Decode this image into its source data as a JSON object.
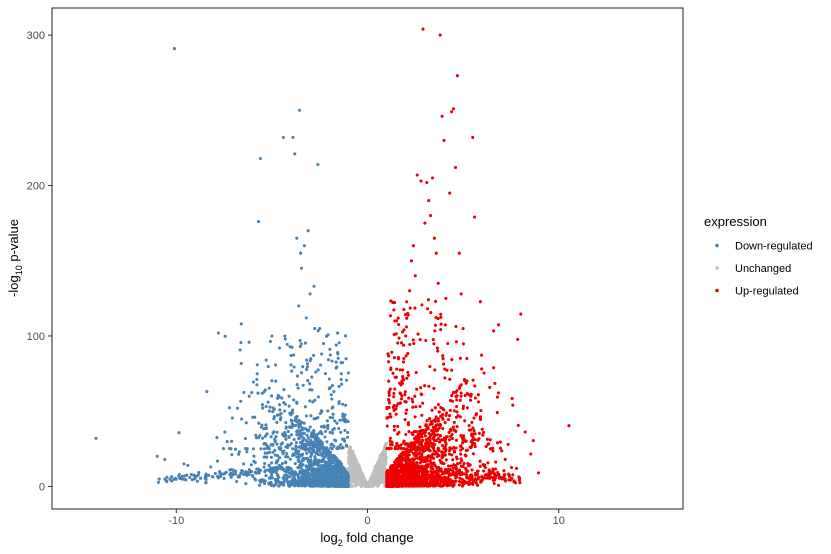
{
  "chart_data": {
    "type": "scatter",
    "title": "",
    "xlabel": {
      "main": "log",
      "sub": "2",
      "rest": " fold change"
    },
    "ylabel": {
      "main": "-log",
      "sub": "10",
      "rest": " p-value"
    },
    "xlim": [
      -16.5,
      16.5
    ],
    "ylim": [
      -15,
      318
    ],
    "xticks": [
      -10,
      0,
      10
    ],
    "xtick_labels": [
      "-10",
      "0",
      "10"
    ],
    "yticks": [
      0,
      100,
      200,
      300
    ],
    "ytick_labels": [
      "0",
      "100",
      "200",
      "300"
    ],
    "grid": false,
    "legend": {
      "title": "expression",
      "placement": "right",
      "entries": [
        {
          "name": "Down-regulated",
          "color": "#4682B4"
        },
        {
          "name": "Unchanged",
          "color": "#BEBEBE"
        },
        {
          "name": "Up-regulated",
          "color": "#EE0000"
        }
      ]
    },
    "thresholds": {
      "log2fc_down": -1,
      "log2fc_up": 1
    },
    "series": [
      {
        "name": "Down-regulated",
        "color": "#4682B4",
        "points": [
          [
            -14.2,
            32
          ],
          [
            -11.0,
            20
          ],
          [
            -10.6,
            18
          ],
          [
            -10.1,
            291
          ],
          [
            -9.6,
            15
          ],
          [
            -9.4,
            14
          ],
          [
            -8.4,
            63
          ],
          [
            -8.2,
            13
          ],
          [
            -7.8,
            102
          ],
          [
            -7.2,
            11
          ],
          [
            -7.0,
            10
          ],
          [
            -6.8,
            52
          ],
          [
            -6.7,
            23
          ],
          [
            -6.6,
            108
          ],
          [
            -6.3,
            9
          ],
          [
            -6.0,
            46
          ],
          [
            -5.9,
            46
          ],
          [
            -5.7,
            176
          ],
          [
            -5.6,
            218
          ],
          [
            -5.5,
            62
          ],
          [
            -5.3,
            84
          ],
          [
            -5.2,
            56
          ],
          [
            -5.0,
            100
          ],
          [
            -4.9,
            45
          ],
          [
            -4.8,
            70
          ],
          [
            -4.6,
            92
          ],
          [
            -4.4,
            232
          ],
          [
            -4.3,
            98
          ],
          [
            -4.1,
            60
          ],
          [
            -4.0,
            87
          ],
          [
            -3.9,
            232
          ],
          [
            -3.8,
            221
          ],
          [
            -3.7,
            165
          ],
          [
            -3.6,
            120
          ],
          [
            -3.55,
            250
          ],
          [
            -3.5,
            155
          ],
          [
            -3.45,
            145
          ],
          [
            -3.3,
            160
          ],
          [
            -3.2,
            112
          ],
          [
            -3.1,
            170
          ],
          [
            -3.0,
            128
          ],
          [
            -2.8,
            133
          ],
          [
            -2.6,
            214
          ],
          [
            -2.5,
            105
          ],
          [
            -2.4,
            88
          ],
          [
            -2.3,
            95
          ],
          [
            -2.2,
            75
          ],
          [
            -2.0,
            65
          ],
          [
            -1.8,
            48
          ],
          [
            -1.6,
            42
          ],
          [
            -1.4,
            36
          ],
          [
            -1.2,
            30
          ]
        ]
      },
      {
        "name": "Up-regulated",
        "color": "#EE0000",
        "points": [
          [
            1.2,
            32
          ],
          [
            1.4,
            40
          ],
          [
            1.5,
            48
          ],
          [
            1.6,
            55
          ],
          [
            1.8,
            70
          ],
          [
            1.9,
            85
          ],
          [
            2.0,
            100
          ],
          [
            2.1,
            115
          ],
          [
            2.2,
            130
          ],
          [
            2.3,
            150
          ],
          [
            2.4,
            160
          ],
          [
            2.5,
            140
          ],
          [
            2.6,
            207
          ],
          [
            2.8,
            203
          ],
          [
            2.9,
            304
          ],
          [
            3.0,
            175
          ],
          [
            3.1,
            202
          ],
          [
            3.2,
            190
          ],
          [
            3.3,
            180
          ],
          [
            3.4,
            205
          ],
          [
            3.5,
            165
          ],
          [
            3.6,
            155
          ],
          [
            3.7,
            135
          ],
          [
            3.8,
            300
          ],
          [
            3.9,
            246
          ],
          [
            4.0,
            230
          ],
          [
            4.1,
            125
          ],
          [
            4.2,
            95
          ],
          [
            4.3,
            195
          ],
          [
            4.4,
            249
          ],
          [
            4.5,
            251
          ],
          [
            4.6,
            212
          ],
          [
            4.7,
            273
          ],
          [
            4.8,
            155
          ],
          [
            4.9,
            128
          ],
          [
            5.0,
            105
          ],
          [
            5.2,
            85
          ],
          [
            5.4,
            60
          ],
          [
            5.5,
            232
          ],
          [
            5.6,
            179
          ],
          [
            5.7,
            48
          ],
          [
            6.0,
            38
          ],
          [
            6.3,
            28
          ],
          [
            6.8,
            29
          ],
          [
            7.2,
            18
          ],
          [
            7.6,
            54
          ],
          [
            7.8,
            12
          ]
        ]
      }
    ]
  }
}
